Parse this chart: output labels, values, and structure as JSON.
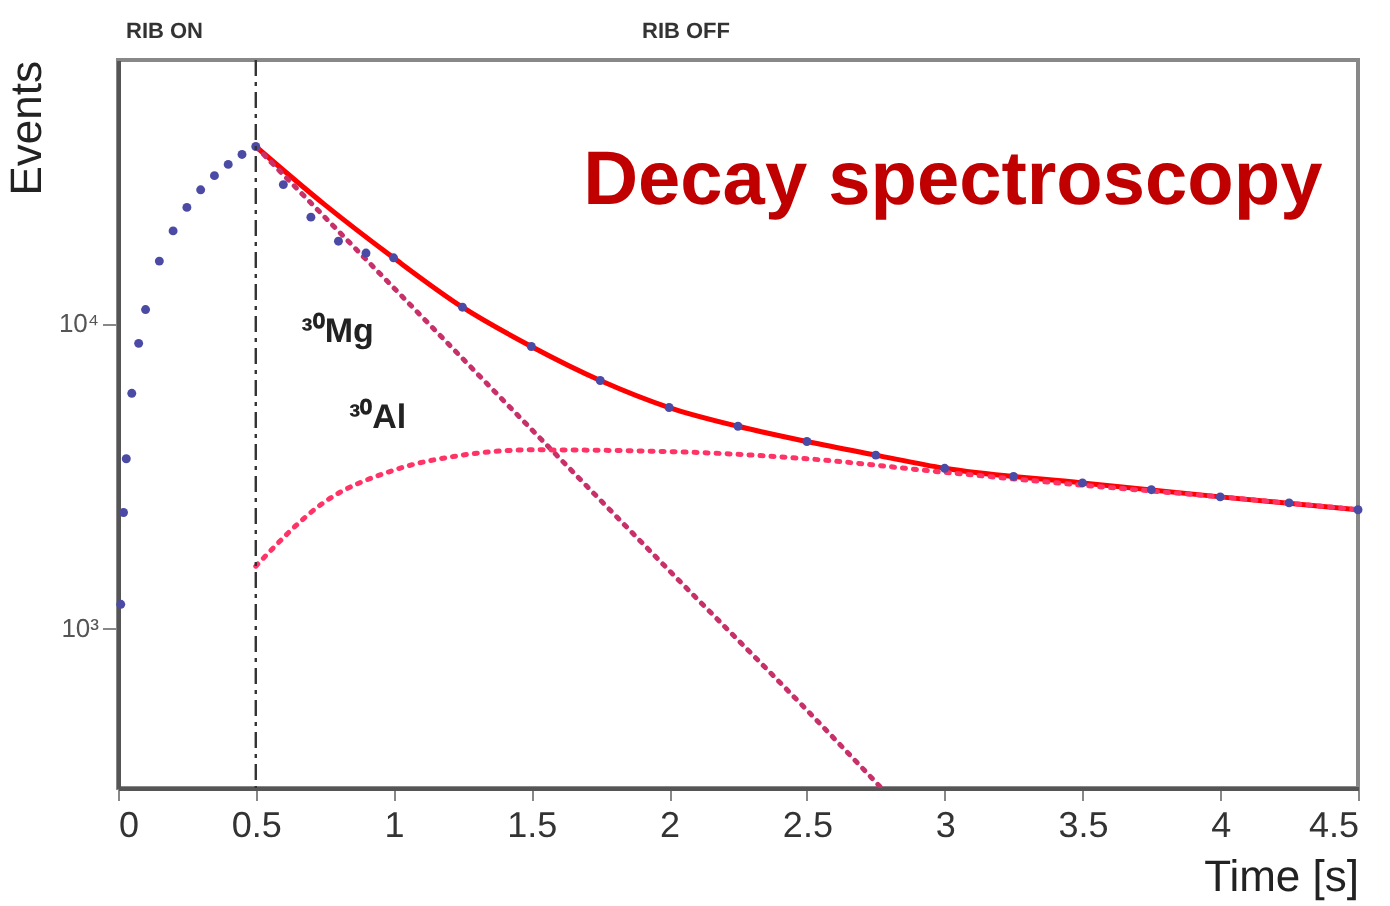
{
  "chart_data": {
    "type": "line",
    "title": "Decay spectroscopy",
    "xlabel": "Time [s]",
    "ylabel": "Events",
    "log": "y",
    "xlim": [
      0,
      4.5
    ],
    "xticks": [
      0,
      0.5,
      1,
      1.5,
      2,
      2.5,
      3,
      3.5,
      4,
      4.5
    ],
    "ylim": [
      300,
      73000
    ],
    "yticks": [
      {
        "value": 1000,
        "label": "10³"
      },
      {
        "value": 10000,
        "label": "10⁴"
      }
    ],
    "annotations": [
      "RIB ON",
      "RIB OFF"
    ],
    "ref_lines": [
      {
        "axis": "x",
        "value": 0.5,
        "color": "#333333",
        "line_style": "dashed"
      }
    ],
    "series": [
      {
        "type": "scatter",
        "marker": "circle",
        "color": "#4b4ba5",
        "x": [
          0.01,
          0.02,
          0.03,
          0.05,
          0.075,
          0.1,
          0.15,
          0.2,
          0.25,
          0.3,
          0.35,
          0.4,
          0.45,
          0.5,
          0.6,
          0.7,
          0.8,
          0.9,
          1.0,
          1.25,
          1.5,
          1.75,
          2.0,
          2.25,
          2.5,
          2.75,
          3.0,
          3.25,
          3.5,
          3.75,
          4.0,
          4.25,
          4.5
        ],
        "values": [
          1200,
          2400,
          3600,
          5900,
          8600,
          11100,
          16000,
          20100,
          24000,
          27400,
          30500,
          33200,
          35800,
          38000,
          28500,
          22300,
          18600,
          17000,
          16400,
          11300,
          8400,
          6500,
          5300,
          4600,
          4100,
          3700,
          3350,
          3150,
          3000,
          2850,
          2700,
          2580,
          2450
        ]
      },
      {
        "line_style": "solid",
        "color": "#ff0000",
        "x": [
          0.5,
          0.75,
          1.0,
          1.25,
          1.5,
          1.75,
          2.0,
          2.25,
          2.5,
          2.75,
          3.0,
          3.5,
          4.0,
          4.5
        ],
        "values": [
          38000,
          24500,
          16400,
          11300,
          8400,
          6500,
          5300,
          4600,
          4100,
          3700,
          3350,
          3000,
          2700,
          2450
        ]
      },
      {
        "name": "³⁰Mg",
        "line_style": "dotted",
        "color": "#c8306a",
        "x": [
          0.5,
          1.0,
          1.5,
          2.0,
          2.5,
          2.77
        ],
        "values": [
          38000,
          13100,
          4500,
          1550,
          540,
          300
        ]
      },
      {
        "name": "³⁰Al",
        "line_style": "dotted",
        "color": "#ff3366",
        "x": [
          0.5,
          0.75,
          1.0,
          1.25,
          1.5,
          2.0,
          2.5,
          3.0,
          3.5,
          4.0,
          4.5
        ],
        "values": [
          1600,
          2600,
          3300,
          3700,
          3850,
          3800,
          3600,
          3250,
          2950,
          2700,
          2450
        ]
      }
    ]
  }
}
